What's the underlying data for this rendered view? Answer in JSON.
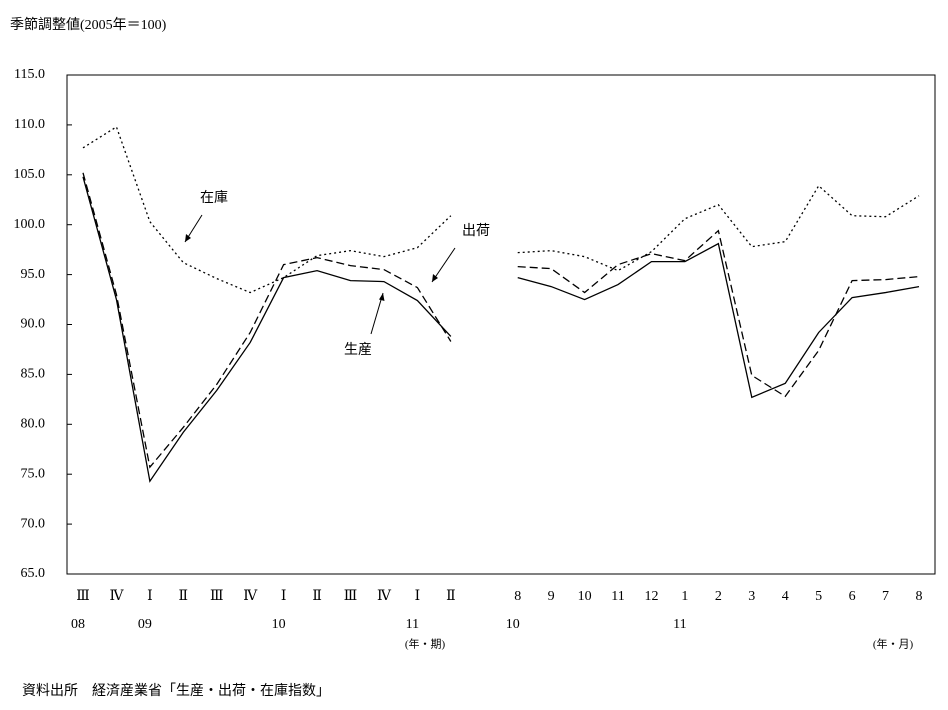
{
  "chart_data": {
    "type": "line",
    "y_label": "季節調整値(2005年＝100)",
    "categories": [
      "Ⅲ",
      "Ⅳ",
      "Ⅰ",
      "Ⅱ",
      "Ⅲ",
      "Ⅳ",
      "Ⅰ",
      "Ⅱ",
      "Ⅲ",
      "Ⅳ",
      "Ⅰ",
      "Ⅱ",
      null,
      "8",
      "9",
      "10",
      "11",
      "12",
      "1",
      "2",
      "3",
      "4",
      "5",
      "6",
      "7",
      "8"
    ],
    "category_groups": [
      "08",
      null,
      "09",
      null,
      null,
      null,
      "10",
      null,
      null,
      null,
      "11",
      null,
      null,
      "10",
      null,
      null,
      null,
      null,
      "11",
      null,
      null,
      null,
      null,
      null,
      null,
      null
    ],
    "x_units": [
      "(年・期)",
      "(年・月)"
    ],
    "series": [
      {
        "name": "生産",
        "color": "#000000",
        "dash": "solid",
        "values": [
          104.8,
          92.5,
          74.3,
          79.2,
          83.4,
          88.2,
          94.7,
          95.4,
          94.4,
          94.3,
          92.4,
          88.8,
          null,
          94.7,
          93.8,
          92.5,
          94.0,
          96.3,
          96.3,
          98.1,
          82.7,
          84.1,
          89.2,
          92.7,
          93.2,
          93.8
        ]
      },
      {
        "name": "出荷",
        "color": "#000000",
        "dash": "dashed",
        "values": [
          105.2,
          93.0,
          75.7,
          79.7,
          84.0,
          89.2,
          96.0,
          96.7,
          95.9,
          95.5,
          93.7,
          88.3,
          null,
          95.8,
          95.6,
          93.2,
          96.0,
          97.1,
          96.4,
          99.4,
          84.9,
          82.8,
          87.4,
          94.4,
          94.5,
          94.8
        ]
      },
      {
        "name": "在庫",
        "color": "#000000",
        "dash": "dotted",
        "values": [
          107.7,
          109.8,
          100.3,
          96.2,
          94.6,
          93.2,
          94.7,
          96.9,
          97.4,
          96.8,
          97.7,
          100.9,
          null,
          97.2,
          97.4,
          96.8,
          95.4,
          97.3,
          100.6,
          102.0,
          97.8,
          98.3,
          103.9,
          100.9,
          100.8,
          102.9
        ]
      }
    ],
    "ylim": [
      65,
      115
    ],
    "yticks": [
      {
        "value": 65,
        "label": "65.0"
      },
      {
        "value": 70,
        "label": "70.0"
      },
      {
        "value": 75,
        "label": "75.0"
      },
      {
        "value": 80,
        "label": "80.0"
      },
      {
        "value": 85,
        "label": "85.0"
      },
      {
        "value": 90,
        "label": "90.0"
      },
      {
        "value": 95,
        "label": "95.0"
      },
      {
        "value": 100,
        "label": "100.0"
      },
      {
        "value": 105,
        "label": "105.0"
      },
      {
        "value": 110,
        "label": "110.0"
      },
      {
        "value": 115,
        "label": "115.0"
      }
    ],
    "source": "資料出所　経済産業省「生産・出荷・在庫指数」"
  }
}
